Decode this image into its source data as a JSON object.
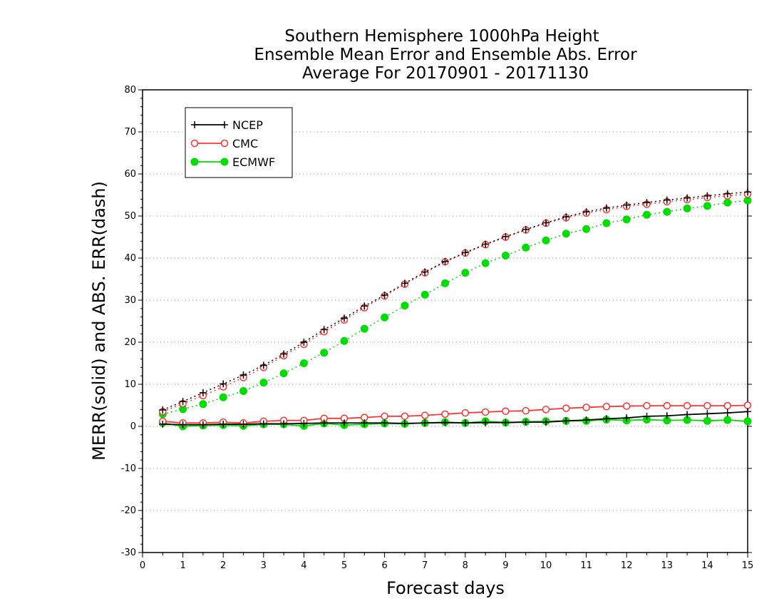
{
  "chart_data": {
    "type": "line",
    "title_lines": [
      "Southern Hemisphere 1000hPa Height",
      "Ensemble Mean Error and Ensemble Abs. Error",
      "Average For 20170901 - 20171130"
    ],
    "xlabel": "Forecast days",
    "ylabel": "MERR(solid) and ABS. ERR(dash)",
    "xlim": [
      0,
      15
    ],
    "ylim": [
      -30,
      80
    ],
    "x_ticks": [
      0,
      1,
      2,
      3,
      4,
      5,
      6,
      7,
      8,
      9,
      10,
      11,
      12,
      13,
      14,
      15
    ],
    "y_ticks": [
      -30,
      -20,
      -10,
      0,
      10,
      20,
      30,
      40,
      50,
      60,
      70,
      80
    ],
    "grid": "horizontal dotted",
    "legend_position": "top-left",
    "x": [
      0.5,
      1.0,
      1.5,
      2.0,
      2.5,
      3.0,
      3.5,
      4.0,
      4.5,
      5.0,
      5.5,
      6.0,
      6.5,
      7.0,
      7.5,
      8.0,
      8.5,
      9.0,
      9.5,
      10.0,
      10.5,
      11.0,
      11.5,
      12.0,
      12.5,
      13.0,
      13.5,
      14.0,
      14.5,
      15.0
    ],
    "series": [
      {
        "name": "NCEP",
        "color": "#000000",
        "marker": "plus",
        "mean_error": [
          0.5,
          0.4,
          0.4,
          0.5,
          0.5,
          0.6,
          0.6,
          0.7,
          0.8,
          0.8,
          0.8,
          0.8,
          0.7,
          0.8,
          0.9,
          0.8,
          0.9,
          0.9,
          1.0,
          1.0,
          1.3,
          1.5,
          1.8,
          2.0,
          2.4,
          2.5,
          2.8,
          3.0,
          3.2,
          3.5
        ],
        "abs_error": [
          3.9,
          5.9,
          8.0,
          10.1,
          12.2,
          14.5,
          17.2,
          20.0,
          23.0,
          25.7,
          28.6,
          31.2,
          34.0,
          36.7,
          39.2,
          41.3,
          43.3,
          45.1,
          46.8,
          48.4,
          49.8,
          51.0,
          51.9,
          52.6,
          53.2,
          53.8,
          54.3,
          54.8,
          55.3,
          55.7
        ]
      },
      {
        "name": "CMC",
        "color": "#ff3333",
        "marker": "open-circle",
        "mean_error": [
          1.2,
          0.8,
          0.8,
          1.0,
          0.8,
          1.2,
          1.4,
          1.4,
          1.9,
          1.9,
          2.1,
          2.4,
          2.4,
          2.6,
          2.9,
          3.2,
          3.4,
          3.6,
          3.7,
          4.0,
          4.3,
          4.5,
          4.7,
          4.8,
          4.9,
          4.9,
          4.9,
          4.9,
          4.9,
          5.0
        ],
        "abs_error": [
          3.5,
          5.4,
          7.3,
          9.4,
          11.6,
          14.0,
          16.8,
          19.5,
          22.5,
          25.3,
          28.2,
          31.0,
          33.8,
          36.5,
          39.1,
          41.2,
          43.2,
          45.0,
          46.7,
          48.3,
          49.6,
          50.7,
          51.5,
          52.3,
          52.8,
          53.4,
          53.9,
          54.4,
          54.8,
          55.2
        ]
      },
      {
        "name": "ECMWF",
        "color": "#00dd00",
        "marker": "filled-circle",
        "mean_error": [
          0.8,
          0.0,
          0.2,
          0.3,
          0.1,
          0.5,
          0.5,
          0.1,
          0.7,
          0.3,
          0.5,
          0.7,
          0.6,
          0.8,
          1.0,
          0.8,
          1.2,
          0.9,
          1.1,
          1.2,
          1.3,
          1.3,
          1.6,
          1.4,
          1.6,
          1.4,
          1.5,
          1.3,
          1.5,
          1.2
        ],
        "abs_error": [
          2.9,
          4.1,
          5.3,
          6.9,
          8.4,
          10.4,
          12.6,
          15.0,
          17.5,
          20.3,
          23.2,
          25.9,
          28.7,
          31.3,
          34.0,
          36.5,
          38.8,
          40.6,
          42.5,
          44.2,
          45.8,
          46.9,
          48.3,
          49.2,
          50.3,
          51.0,
          51.8,
          52.4,
          53.2,
          53.7
        ]
      }
    ]
  }
}
